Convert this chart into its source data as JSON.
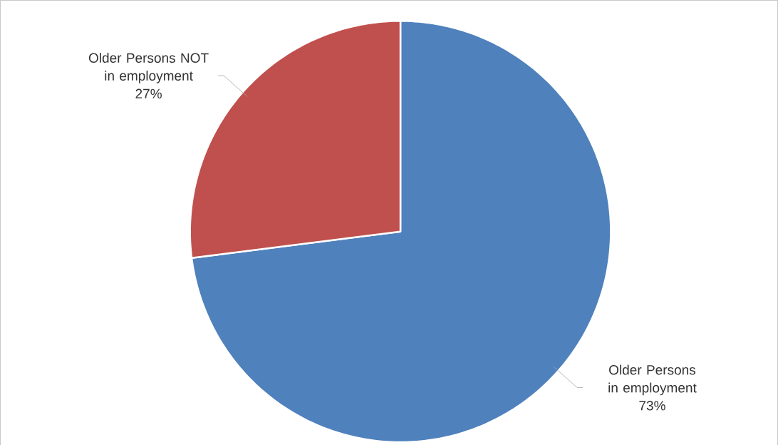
{
  "chart_data": {
    "type": "pie",
    "categories": [
      "Older Persons in employment",
      "Older Persons NOT in employment"
    ],
    "values": [
      73,
      27
    ],
    "colors": [
      "#4f81bd",
      "#c0504d"
    ],
    "value_labels": [
      "73%",
      "27%"
    ]
  }
}
